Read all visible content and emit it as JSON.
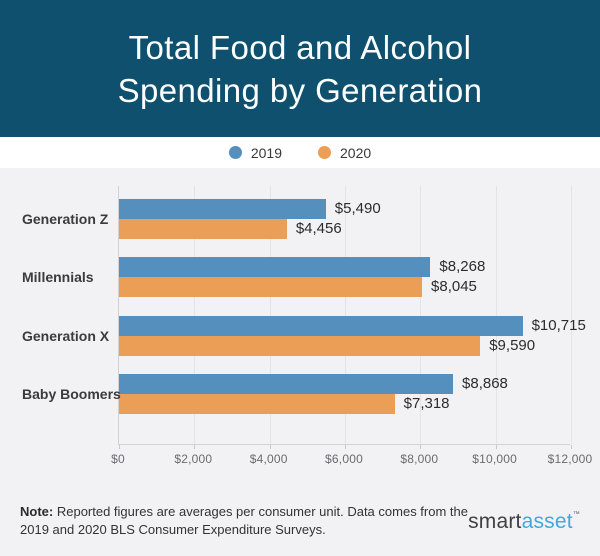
{
  "header": {
    "title_line1": "Total Food and Alcohol",
    "title_line2": "Spending by Generation",
    "background_color": "#0f506e"
  },
  "chart_data": {
    "type": "bar",
    "orientation": "horizontal",
    "title": "Total Food and Alcohol Spending by Generation",
    "categories": [
      "Generation Z",
      "Millennials",
      "Generation X",
      "Baby Boomers"
    ],
    "series": [
      {
        "name": "2019",
        "color": "#548fbd",
        "values": [
          5490,
          8268,
          10715,
          8868
        ],
        "labels": [
          "$5,490",
          "$8,268",
          "$10,715",
          "$8,868"
        ]
      },
      {
        "name": "2020",
        "color": "#eb9e55",
        "values": [
          4456,
          8045,
          9590,
          7318
        ],
        "labels": [
          "$4,456",
          "$8,045",
          "$9,590",
          "$7,318"
        ]
      }
    ],
    "xlim": [
      0,
      12000
    ],
    "x_ticks": [
      {
        "value": 0,
        "label": "$0"
      },
      {
        "value": 2000,
        "label": "$2,000"
      },
      {
        "value": 4000,
        "label": "$4,000"
      },
      {
        "value": 6000,
        "label": "$6,000"
      },
      {
        "value": 8000,
        "label": "$8,000"
      },
      {
        "value": 10000,
        "label": "$10,000"
      },
      {
        "value": 12000,
        "label": "$12,000"
      }
    ],
    "grid": true,
    "legend_position": "top"
  },
  "footer": {
    "note_label": "Note:",
    "note_text": "Reported figures are averages per consumer unit. Data comes from the 2019 and 2020 BLS Consumer Expenditure Surveys.",
    "logo": {
      "part1": "smart",
      "part2": "asset",
      "trademark": "™",
      "accent_color": "#41a7e0"
    }
  }
}
